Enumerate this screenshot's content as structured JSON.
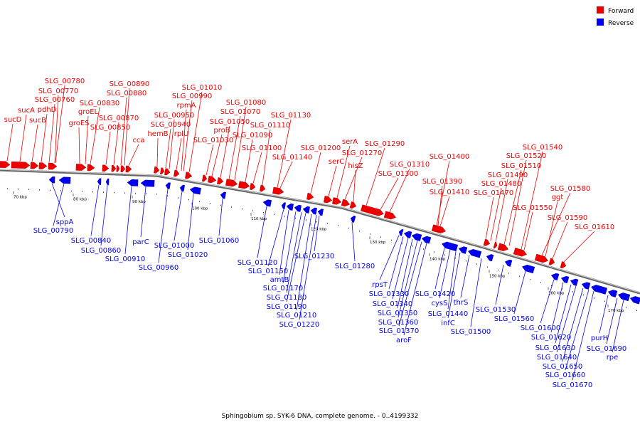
{
  "caption": "Sphingobium sp. SYK-6 DNA, complete genome. - 0..4199332",
  "legend": [
    {
      "label": "Forward",
      "color": "#ee0000"
    },
    {
      "label": "Reverse",
      "color": "#0000ee"
    }
  ],
  "colors": {
    "forward": "#ee0000",
    "reverse": "#0000ee",
    "backbone": "#888888"
  },
  "kbp_ticks": [
    "70 kbp",
    "80 kbp",
    "90 kbp",
    "100 kbp",
    "110 kbp",
    "120 kbp",
    "130 kbp",
    "140 kbp",
    "150 kbp",
    "160 kbp",
    "170 kbp"
  ],
  "forward_genes": [
    "sucD",
    "sucA",
    "sucB",
    "pdhD",
    "SLG_00760",
    "SLG_00770",
    "SLG_00780",
    "groES",
    "groEL",
    "SLG_00830",
    "SLG_00850",
    "SLG_00870",
    "SLG_00880",
    "SLG_00890",
    "cca",
    "hemB",
    "SLG_00940",
    "SLG_00950",
    "rplU",
    "SLG_00990",
    "rpmA",
    "SLG_01010",
    "SLG_01030",
    "proB",
    "SLG_01050",
    "SLG_01070",
    "SLG_01080",
    "SLG_01090",
    "SLG_01100",
    "SLG_01110",
    "SLG_01130",
    "SLG_01140",
    "SLG_01200",
    "serC",
    "serA",
    "SLG_01270",
    "hisZ",
    "SLG_01290",
    "SLG_01300",
    "SLG_01310",
    "SLG_01400",
    "SLG_01390",
    "SLG_01410",
    "SLG_01470",
    "SLG_01480",
    "SLG_01490",
    "SLG_01510",
    "SLG_01520",
    "SLG_01540",
    "SLG_01550",
    "SLG_01580",
    "ggt",
    "SLG_01590",
    "SLG_01610"
  ],
  "reverse_genes": [
    "sppA",
    "SLG_00790",
    "SLG_00840",
    "SLG_00860",
    "SLG_00910",
    "parC",
    "SLG_00960",
    "SLG_01000",
    "SLG_01020",
    "SLG_01060",
    "SLG_01120",
    "SLG_01150",
    "amtB",
    "SLG_01170",
    "SLG_01180",
    "SLG_01190",
    "SLG_01210",
    "SLG_01220",
    "SLG_01230",
    "SLG_01280",
    "rpsT",
    "SLG_01330",
    "SLG_01340",
    "SLG_01350",
    "SLG_01360",
    "SLG_01370",
    "aroF",
    "SLG_01420",
    "cysS",
    "SLG_01440",
    "infC",
    "thrS",
    "SLG_01500",
    "SLG_01530",
    "SLG_01560",
    "SLG_01600",
    "SLG_01620",
    "SLG_01630",
    "SLG_01640",
    "SLG_01650",
    "SLG_01660",
    "SLG_01670",
    "purH",
    "SLG_01690",
    "rpe"
  ]
}
